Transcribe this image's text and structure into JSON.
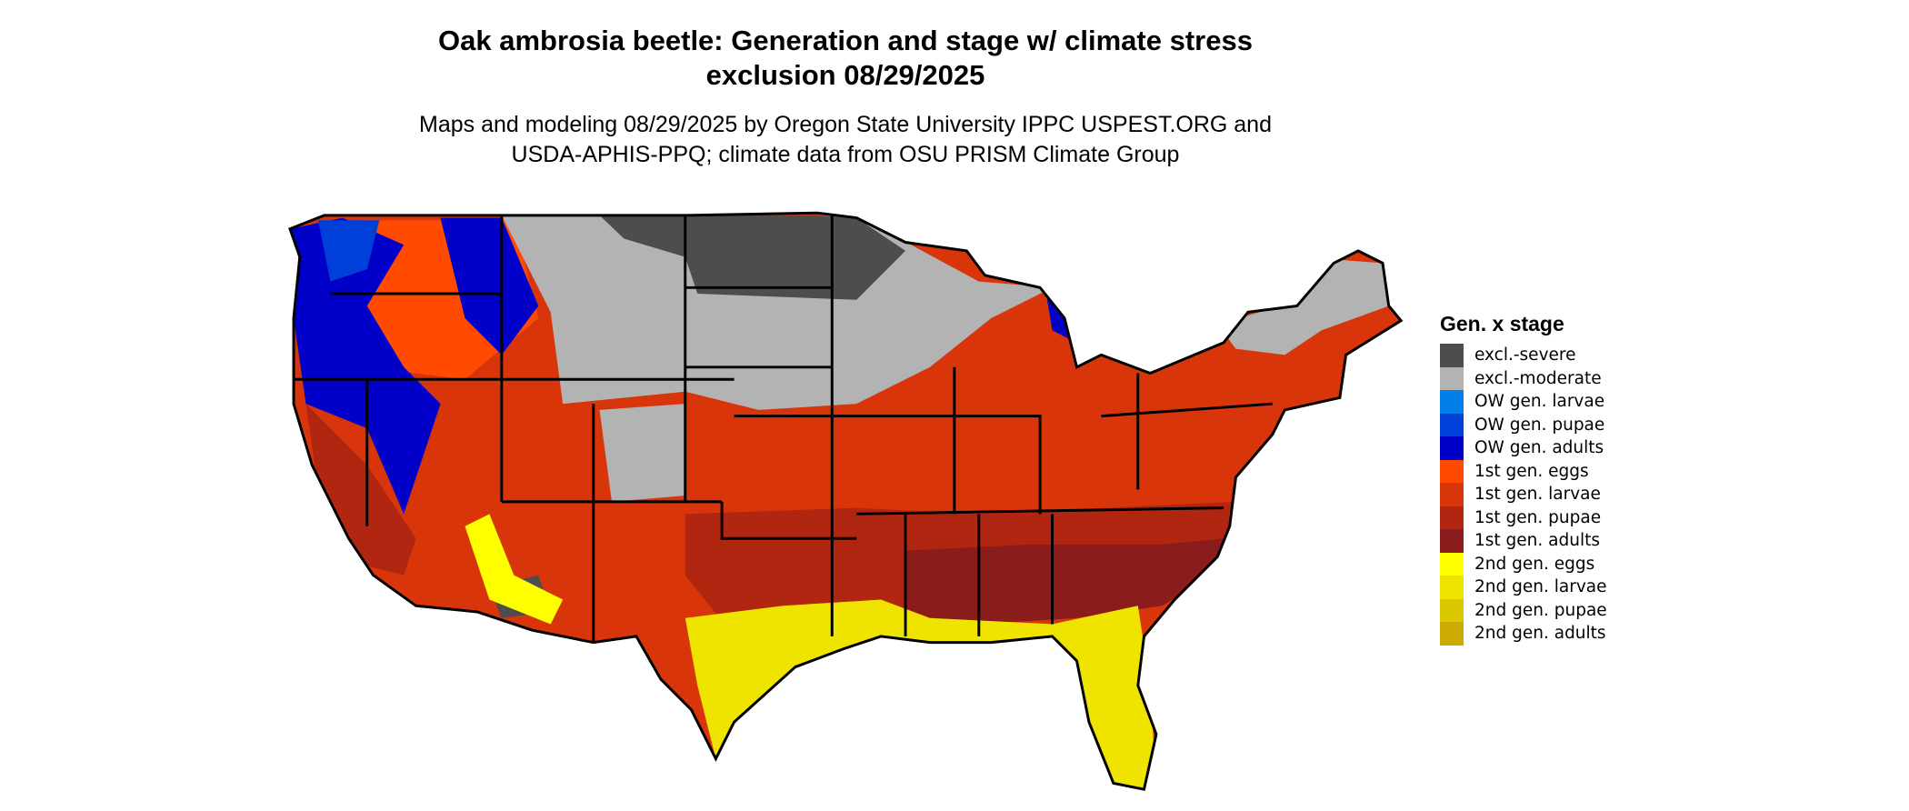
{
  "header": {
    "title_line1": "Oak ambrosia beetle: Generation and stage w/ climate stress",
    "title_line2": "exclusion 08/29/2025",
    "subtitle_line1": "Maps and modeling 08/29/2025 by Oregon State University IPPC USPEST.ORG and",
    "subtitle_line2": "USDA-APHIS-PPQ; climate data from OSU PRISM Climate Group"
  },
  "legend": {
    "title": "Gen. x stage",
    "items": [
      {
        "label": "excl.-severe",
        "color": "#4d4d4d"
      },
      {
        "label": "excl.-moderate",
        "color": "#b3b3b3"
      },
      {
        "label": "OW gen. larvae",
        "color": "#0080e8"
      },
      {
        "label": "OW gen. pupae",
        "color": "#0040d8"
      },
      {
        "label": "OW gen. adults",
        "color": "#0000c8"
      },
      {
        "label": "1st gen. eggs",
        "color": "#ff4a00"
      },
      {
        "label": "1st gen. larvae",
        "color": "#d8360a"
      },
      {
        "label": "1st gen. pupae",
        "color": "#b02610"
      },
      {
        "label": "1st gen. adults",
        "color": "#8a1c1c"
      },
      {
        "label": "2nd gen. eggs",
        "color": "#ffff00"
      },
      {
        "label": "2nd gen. larvae",
        "color": "#eee400"
      },
      {
        "label": "2nd gen. pupae",
        "color": "#dcc800"
      },
      {
        "label": "2nd gen. adults",
        "color": "#ccac00"
      }
    ]
  }
}
